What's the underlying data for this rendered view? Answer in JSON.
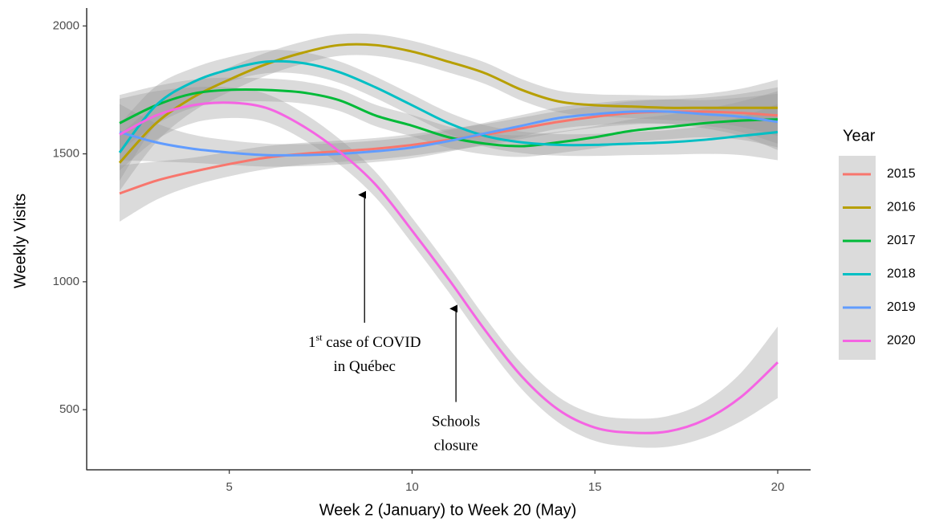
{
  "chart_data": {
    "type": "line",
    "x_label": "Week 2 (January) to Week 20 (May)",
    "y_label": "Weekly Visits",
    "legend_title": "Year",
    "legend": "right",
    "xlim": [
      1.1,
      20.9
    ],
    "ylim": [
      265,
      2070
    ],
    "xticks": [
      5,
      10,
      15,
      20
    ],
    "yticks": [
      500,
      1000,
      1500,
      2000
    ],
    "x": [
      2,
      3,
      4,
      5,
      6,
      7,
      8,
      9,
      10,
      11,
      12,
      13,
      14,
      15,
      16,
      17,
      18,
      19,
      20
    ],
    "series": [
      {
        "name": "2015",
        "color": "#f8766d",
        "values": [
          1345,
          1395,
          1430,
          1460,
          1485,
          1500,
          1510,
          1520,
          1535,
          1555,
          1575,
          1600,
          1625,
          1645,
          1660,
          1665,
          1665,
          1660,
          1650
        ],
        "ci": [
          110,
          75,
          55,
          48,
          45,
          43,
          42,
          42,
          42,
          42,
          42,
          42,
          42,
          43,
          45,
          48,
          55,
          75,
          110
        ]
      },
      {
        "name": "2016",
        "color": "#b79f00",
        "values": [
          1465,
          1620,
          1720,
          1790,
          1850,
          1895,
          1925,
          1925,
          1900,
          1860,
          1815,
          1750,
          1705,
          1690,
          1685,
          1680,
          1680,
          1680,
          1680
        ],
        "ci": [
          110,
          75,
          55,
          48,
          45,
          43,
          42,
          42,
          42,
          42,
          42,
          42,
          42,
          43,
          45,
          48,
          55,
          75,
          110
        ]
      },
      {
        "name": "2017",
        "color": "#00ba38",
        "values": [
          1620,
          1690,
          1735,
          1750,
          1750,
          1740,
          1710,
          1650,
          1610,
          1565,
          1540,
          1530,
          1545,
          1565,
          1590,
          1605,
          1620,
          1630,
          1635
        ],
        "ci": [
          110,
          75,
          55,
          48,
          45,
          43,
          42,
          42,
          42,
          42,
          42,
          42,
          42,
          43,
          45,
          48,
          55,
          75,
          110
        ]
      },
      {
        "name": "2018",
        "color": "#00bfc4",
        "values": [
          1505,
          1690,
          1780,
          1830,
          1860,
          1855,
          1820,
          1760,
          1690,
          1620,
          1570,
          1545,
          1535,
          1535,
          1540,
          1545,
          1555,
          1570,
          1585
        ],
        "ci": [
          110,
          75,
          55,
          48,
          45,
          43,
          42,
          42,
          42,
          42,
          42,
          42,
          42,
          43,
          45,
          48,
          55,
          75,
          110
        ]
      },
      {
        "name": "2019",
        "color": "#619cff",
        "values": [
          1585,
          1545,
          1520,
          1505,
          1495,
          1495,
          1500,
          1510,
          1525,
          1550,
          1580,
          1610,
          1640,
          1655,
          1665,
          1665,
          1655,
          1645,
          1625
        ],
        "ci": [
          110,
          75,
          55,
          48,
          45,
          43,
          42,
          42,
          42,
          42,
          42,
          42,
          42,
          43,
          45,
          48,
          55,
          75,
          110
        ]
      },
      {
        "name": "2020",
        "color": "#f564e3",
        "values": [
          1575,
          1650,
          1690,
          1700,
          1680,
          1610,
          1510,
          1380,
          1200,
          1010,
          810,
          630,
          500,
          430,
          410,
          415,
          460,
          550,
          685
        ],
        "ci": [
          140,
          95,
          70,
          60,
          55,
          52,
          50,
          50,
          50,
          50,
          50,
          50,
          50,
          52,
          55,
          60,
          70,
          95,
          140
        ]
      }
    ],
    "annotations": [
      {
        "x": 8.7,
        "y": 1365,
        "tail_y": 840,
        "text": [
          [
            "1",
            "st",
            " case of COVID"
          ],
          [
            "in Québec"
          ]
        ]
      },
      {
        "x": 11.2,
        "y": 920,
        "tail_y": 530,
        "text": [
          [
            "Schools"
          ],
          [
            "closure"
          ]
        ]
      }
    ]
  }
}
